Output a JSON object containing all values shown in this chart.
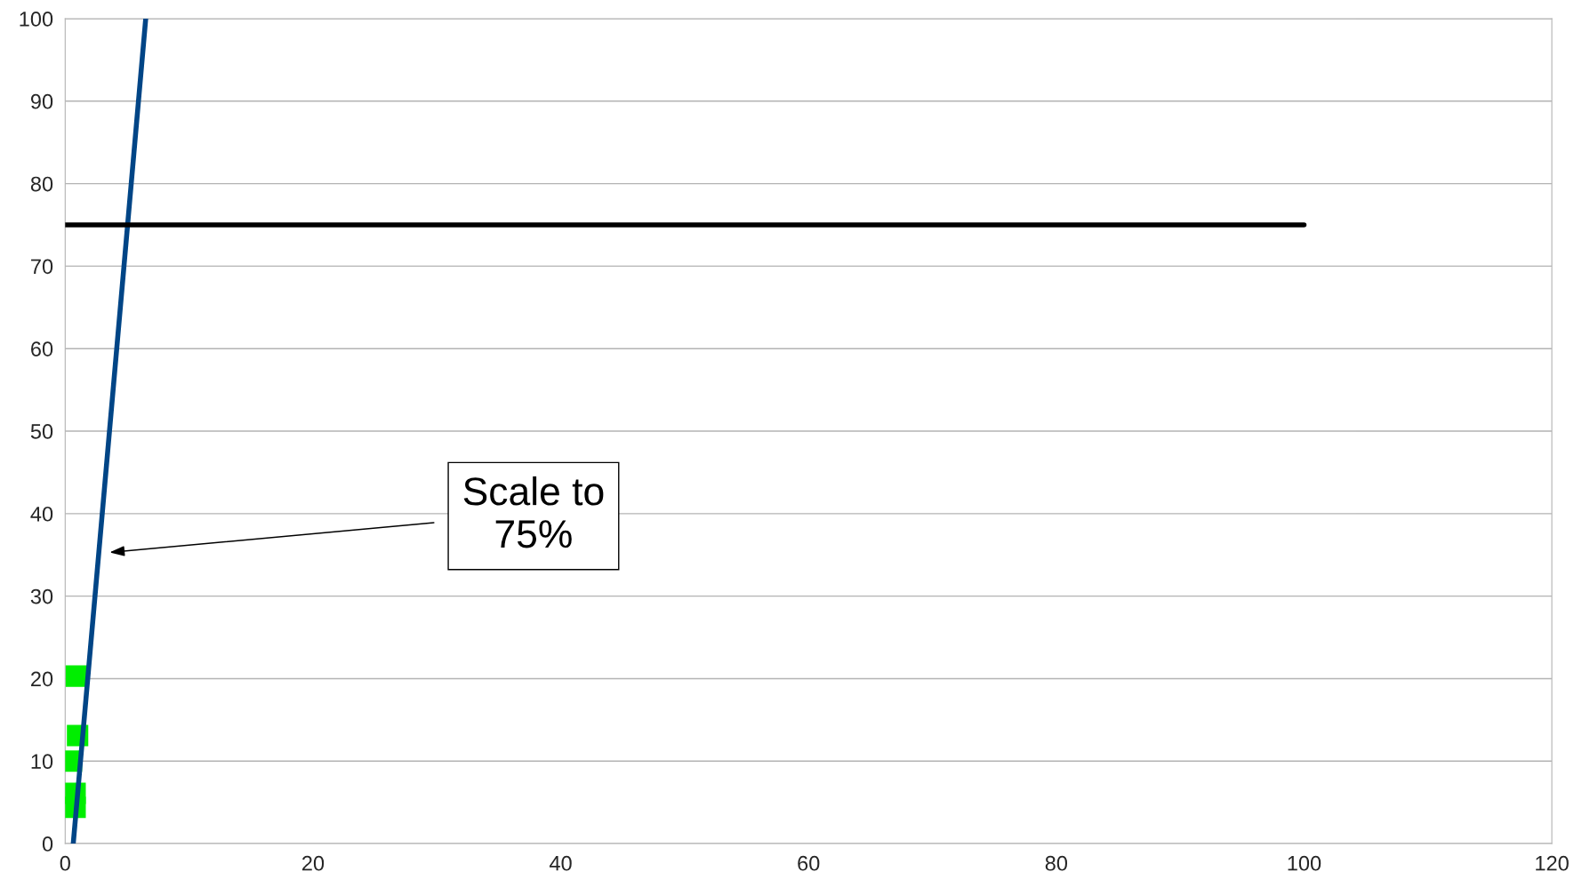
{
  "chart_data": {
    "type": "scatter",
    "series": [
      {
        "color": "#00ee00",
        "marker": "square",
        "x": [
          0.9,
          1.0,
          0.5,
          0.8,
          0.8
        ],
        "values": [
          20.3,
          13.1,
          10.0,
          6.1,
          4.4
        ]
      },
      {
        "type": "line",
        "color": "#004586",
        "marker": "none",
        "x": [
          0.65,
          6.5
        ],
        "values": [
          0,
          100
        ]
      },
      {
        "type": "line",
        "color": "#000000",
        "marker": "none",
        "x": [
          0,
          100
        ],
        "values": [
          75,
          75
        ]
      }
    ],
    "xlim": [
      0,
      120
    ],
    "xticks": [
      0,
      20,
      40,
      60,
      80,
      100,
      120
    ],
    "ylim": [
      0,
      100
    ],
    "yticks": [
      0,
      10,
      20,
      30,
      40,
      50,
      60,
      70,
      80,
      90,
      100
    ],
    "grid": "y",
    "legend": false,
    "annotations": [
      "Scale to\n75%"
    ]
  }
}
